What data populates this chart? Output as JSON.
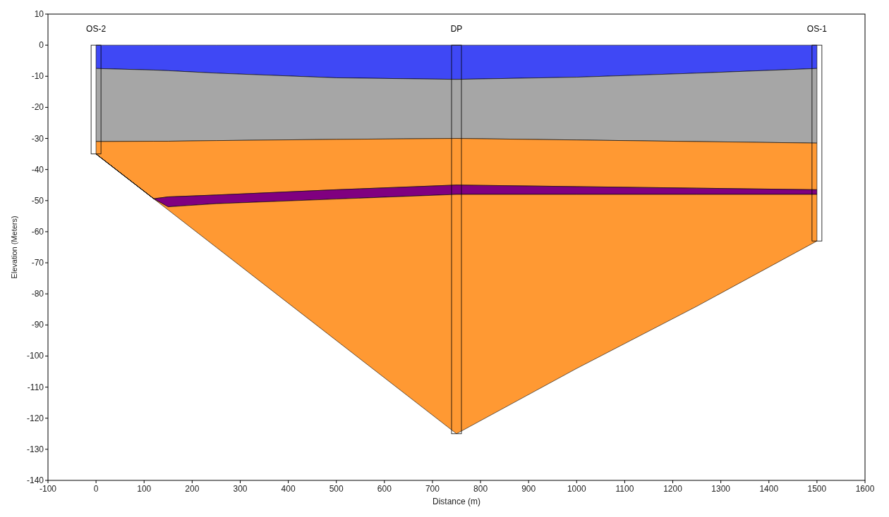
{
  "chart_data": {
    "type": "area",
    "stacked": true,
    "xlabel": "Distance (m)",
    "ylabel": "Elevation (Meters)",
    "xlim": [
      -100,
      1600
    ],
    "xticks": [
      -100,
      0,
      100,
      200,
      300,
      400,
      500,
      600,
      700,
      800,
      900,
      1000,
      1100,
      1200,
      1300,
      1400,
      1500,
      1600
    ],
    "ylim": [
      -140,
      10
    ],
    "yticks": [
      -140,
      -130,
      -120,
      -110,
      -100,
      -90,
      -80,
      -70,
      -60,
      -50,
      -40,
      -30,
      -20,
      -10,
      0,
      10
    ],
    "grid": false,
    "x": [
      0,
      120,
      150,
      250,
      500,
      750,
      1000,
      1250,
      1500
    ],
    "series": [
      {
        "color": "#3f48f5",
        "values": [
          -7.5,
          -8,
          -8.2,
          -9,
          -10.5,
          -11,
          -10.3,
          -9,
          -7.5
        ]
      },
      {
        "color": "#a6a6a6",
        "values": [
          -23.5,
          -22.9,
          -22.7,
          -21.7,
          -19.8,
          -19,
          -20.2,
          -22,
          -24
        ]
      },
      {
        "color": "#ff9933",
        "values": [
          -4,
          -18.5,
          -17.9,
          -17.5,
          -16.2,
          -15,
          -15,
          -15,
          -15
        ]
      },
      {
        "color": "#800080",
        "values": [
          0,
          0,
          -3.2,
          -2.8,
          -3,
          -3,
          -2.5,
          -2,
          -1.5
        ]
      },
      {
        "color": "#ff9933",
        "values": [
          0,
          0,
          -1,
          -14,
          -45.5,
          -77,
          -56,
          -36,
          -15
        ]
      },
      {
        "type": "bar",
        "color": "#000000",
        "x": [
          0,
          750,
          1500
        ],
        "values": [
          -35,
          -125,
          -63
        ]
      }
    ],
    "annotations": [
      "OS-2",
      "DP",
      "OS-1"
    ]
  }
}
